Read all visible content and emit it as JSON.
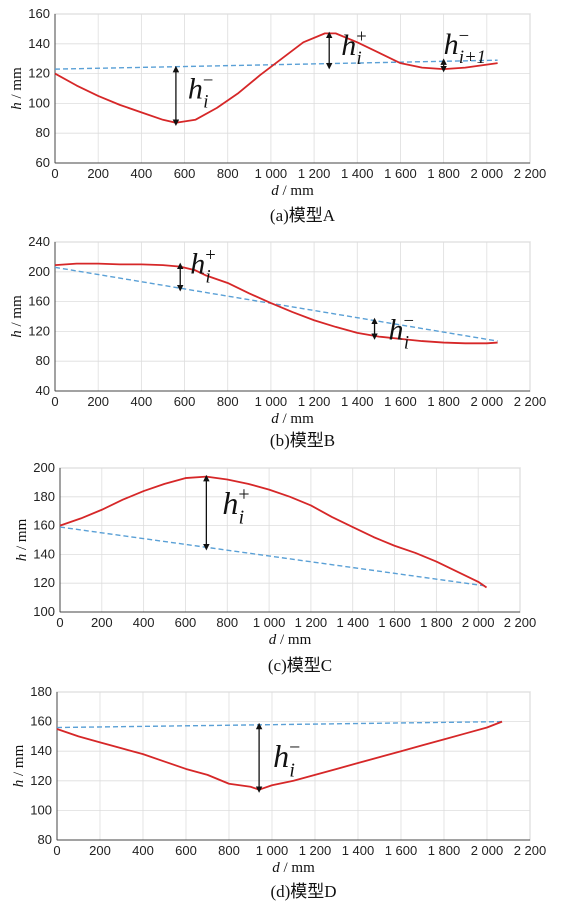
{
  "chart_data": [
    {
      "type": "line",
      "caption": "(a)模型A",
      "xlabel_var": "d",
      "xlabel_unit": " / mm",
      "ylabel_var": "h",
      "ylabel_unit": " / mm",
      "xlim": [
        0,
        2200
      ],
      "ylim": [
        60,
        160
      ],
      "xticks": [
        0,
        200,
        400,
        600,
        800,
        1000,
        1200,
        1400,
        1600,
        1800,
        2000,
        2200
      ],
      "xtick_labels": [
        "0",
        "200",
        "400",
        "600",
        "800",
        "1 000",
        "1 200",
        "1 400",
        "1 600",
        "1 800",
        "2 000",
        "2 200"
      ],
      "yticks": [
        60,
        80,
        100,
        120,
        140,
        160
      ],
      "ytick_labels": [
        "60",
        "80",
        "100",
        "120",
        "140",
        "160"
      ],
      "grid": true,
      "profile_color": "#d62728",
      "baseline_color": "#5aa0d6",
      "profile": {
        "x": [
          0,
          100,
          200,
          300,
          400,
          500,
          560,
          650,
          750,
          850,
          950,
          1050,
          1150,
          1250,
          1300,
          1400,
          1500,
          1600,
          1700,
          1800,
          1900,
          2000,
          2050
        ],
        "y": [
          120,
          112,
          105,
          99,
          94,
          89,
          87,
          89,
          97,
          107,
          119,
          130,
          141,
          147,
          147,
          141,
          134,
          127,
          124,
          123,
          124,
          126,
          127
        ]
      },
      "baseline": {
        "x": [
          0,
          2050
        ],
        "y": [
          123,
          129
        ]
      },
      "annotations": [
        {
          "label": "h",
          "sup": "−",
          "sub": "i",
          "x": 560,
          "y_from": 123,
          "y_to": 87
        },
        {
          "label": "h",
          "sup": "+",
          "sub": "i",
          "x": 1270,
          "y_from": 146,
          "y_to": 125
        },
        {
          "label": "h",
          "sup": "−",
          "sub": "i+1",
          "x": 1800,
          "y_from": 123,
          "y_to": 128
        }
      ]
    },
    {
      "type": "line",
      "caption": "(b)模型B",
      "xlabel_var": "d",
      "xlabel_unit": " / mm",
      "ylabel_var": "h",
      "ylabel_unit": " / mm",
      "xlim": [
        0,
        2200
      ],
      "ylim": [
        40,
        240
      ],
      "xticks": [
        0,
        200,
        400,
        600,
        800,
        1000,
        1200,
        1400,
        1600,
        1800,
        2000,
        2200
      ],
      "xtick_labels": [
        "0",
        "200",
        "400",
        "600",
        "800",
        "1 000",
        "1 200",
        "1 400",
        "1 600",
        "1 800",
        "2 000",
        "2 200"
      ],
      "yticks": [
        40,
        80,
        120,
        160,
        200,
        240
      ],
      "ytick_labels": [
        "40",
        "80",
        "120",
        "160",
        "200",
        "240"
      ],
      "grid": true,
      "profile_color": "#d62728",
      "baseline_color": "#5aa0d6",
      "profile": {
        "x": [
          0,
          100,
          200,
          300,
          400,
          500,
          580,
          650,
          700,
          800,
          900,
          1000,
          1100,
          1200,
          1300,
          1400,
          1500,
          1600,
          1700,
          1800,
          1900,
          2000,
          2050
        ],
        "y": [
          209,
          211,
          211,
          210,
          210,
          209,
          207,
          202,
          195,
          185,
          171,
          158,
          146,
          135,
          126,
          118,
          113,
          110,
          107,
          105,
          104,
          104,
          105
        ]
      },
      "baseline": {
        "x": [
          0,
          2050
        ],
        "y": [
          206,
          107
        ]
      },
      "annotations": [
        {
          "label": "h",
          "sup": "+",
          "sub": "i",
          "x": 580,
          "y_from": 208,
          "y_to": 178
        },
        {
          "label": "h",
          "sup": "−",
          "sub": "i",
          "x": 1480,
          "y_from": 134,
          "y_to": 113
        }
      ]
    },
    {
      "type": "line",
      "caption": "(c)模型C",
      "xlabel_var": "d",
      "xlabel_unit": " / mm",
      "ylabel_var": "h",
      "ylabel_unit": " / mm",
      "xlim": [
        0,
        2200
      ],
      "ylim": [
        100,
        200
      ],
      "xticks": [
        0,
        200,
        400,
        600,
        800,
        1000,
        1200,
        1400,
        1600,
        1800,
        2000,
        2200
      ],
      "xtick_labels": [
        "0",
        "200",
        "400",
        "600",
        "800",
        "1 000",
        "1 200",
        "1 400",
        "1 600",
        "1 800",
        "2 000",
        "2 200"
      ],
      "yticks": [
        100,
        120,
        140,
        160,
        180,
        200
      ],
      "ytick_labels": [
        "100",
        "120",
        "140",
        "160",
        "180",
        "200"
      ],
      "grid": true,
      "profile_color": "#d62728",
      "baseline_color": "#5aa0d6",
      "profile": {
        "x": [
          0,
          100,
          200,
          300,
          400,
          500,
          600,
          700,
          800,
          900,
          1000,
          1100,
          1200,
          1300,
          1400,
          1500,
          1600,
          1700,
          1800,
          1900,
          2000,
          2040
        ],
        "y": [
          160,
          165,
          171,
          178,
          184,
          189,
          193,
          194,
          192,
          189,
          185,
          180,
          174,
          166,
          159,
          152,
          146,
          141,
          135,
          128,
          121,
          117
        ]
      },
      "baseline": {
        "x": [
          0,
          2040
        ],
        "y": [
          159,
          118
        ]
      },
      "annotations": [
        {
          "label": "h",
          "sup": "+",
          "sub": "i",
          "x": 700,
          "y_from": 193,
          "y_to": 145
        }
      ]
    },
    {
      "type": "line",
      "caption": "(d)模型D",
      "xlabel_var": "d",
      "xlabel_unit": " / mm",
      "ylabel_var": "h",
      "ylabel_unit": " / mm",
      "xlim": [
        0,
        2200
      ],
      "ylim": [
        80,
        180
      ],
      "xticks": [
        0,
        200,
        400,
        600,
        800,
        1000,
        1200,
        1400,
        1600,
        1800,
        2000,
        2200
      ],
      "xtick_labels": [
        "0",
        "200",
        "400",
        "600",
        "800",
        "1 000",
        "1 200",
        "1 400",
        "1 600",
        "1 800",
        "2 000",
        "2 200"
      ],
      "yticks": [
        80,
        100,
        120,
        140,
        160,
        180
      ],
      "ytick_labels": [
        "80",
        "100",
        "120",
        "140",
        "160",
        "180"
      ],
      "grid": true,
      "profile_color": "#d62728",
      "baseline_color": "#5aa0d6",
      "profile": {
        "x": [
          0,
          100,
          200,
          300,
          400,
          500,
          600,
          700,
          800,
          900,
          940,
          1000,
          1100,
          1200,
          1300,
          1400,
          1500,
          1600,
          1700,
          1800,
          1900,
          2000,
          2070
        ],
        "y": [
          155,
          150,
          146,
          142,
          138,
          133,
          128,
          124,
          118,
          116,
          114,
          117,
          120,
          124,
          128,
          132,
          136,
          140,
          144,
          148,
          152,
          156,
          160
        ]
      },
      "baseline": {
        "x": [
          0,
          2070
        ],
        "y": [
          156,
          160
        ]
      },
      "annotations": [
        {
          "label": "h",
          "sup": "−",
          "sub": "i",
          "x": 940,
          "y_from": 157,
          "y_to": 114
        }
      ]
    }
  ]
}
